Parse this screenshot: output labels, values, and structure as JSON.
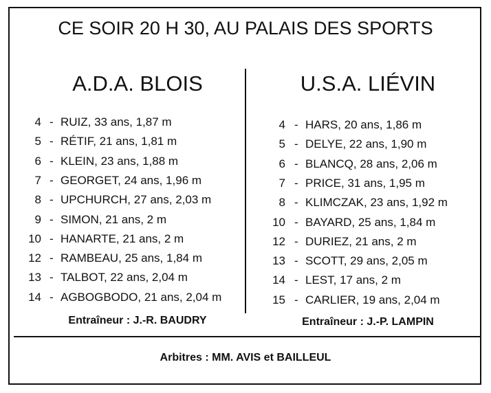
{
  "header": {
    "title": "CE SOIR 20 H 30, AU PALAIS DES SPORTS"
  },
  "separator": "-",
  "teams": [
    {
      "name": "A.D.A. BLOIS",
      "players": [
        {
          "number": "4",
          "details": "RUIZ, 33 ans, 1,87 m"
        },
        {
          "number": "5",
          "details": "RÉTIF, 21 ans, 1,81 m"
        },
        {
          "number": "6",
          "details": "KLEIN, 23 ans, 1,88 m"
        },
        {
          "number": "7",
          "details": "GEORGET, 24 ans, 1,96 m"
        },
        {
          "number": "8",
          "details": "UPCHURCH, 27 ans, 2,03 m"
        },
        {
          "number": "9",
          "details": "SIMON, 21 ans, 2 m"
        },
        {
          "number": "10",
          "details": "HANARTE, 21 ans, 2 m"
        },
        {
          "number": "12",
          "details": "RAMBEAU, 25 ans, 1,84 m"
        },
        {
          "number": "13",
          "details": "TALBOT, 22 ans, 2,04 m"
        },
        {
          "number": "14",
          "details": "AGBOGBODO, 21 ans, 2,04 m"
        }
      ],
      "coach": "Entraîneur : J.-R. BAUDRY"
    },
    {
      "name": "U.S.A. LIÉVIN",
      "players": [
        {
          "number": "4",
          "details": "HARS, 20 ans, 1,86 m"
        },
        {
          "number": "5",
          "details": "DELYE, 22 ans, 1,90 m"
        },
        {
          "number": "6",
          "details": "BLANCQ, 28 ans, 2,06 m"
        },
        {
          "number": "7",
          "details": "PRICE, 31 ans, 1,95 m"
        },
        {
          "number": "8",
          "details": "KLIMCZAK, 23 ans, 1,92 m"
        },
        {
          "number": "10",
          "details": "BAYARD, 25 ans, 1,84 m"
        },
        {
          "number": "12",
          "details": "DURIEZ, 21 ans, 2 m"
        },
        {
          "number": "13",
          "details": "SCOTT, 29 ans, 2,05 m"
        },
        {
          "number": "14",
          "details": "LEST, 17 ans, 2 m"
        },
        {
          "number": "15",
          "details": "CARLIER, 19 ans, 2,04 m"
        }
      ],
      "coach": "Entraîneur : J.-P. LAMPIN"
    }
  ],
  "footer": {
    "referees": "Arbitres : MM. AVIS et BAILLEUL"
  }
}
